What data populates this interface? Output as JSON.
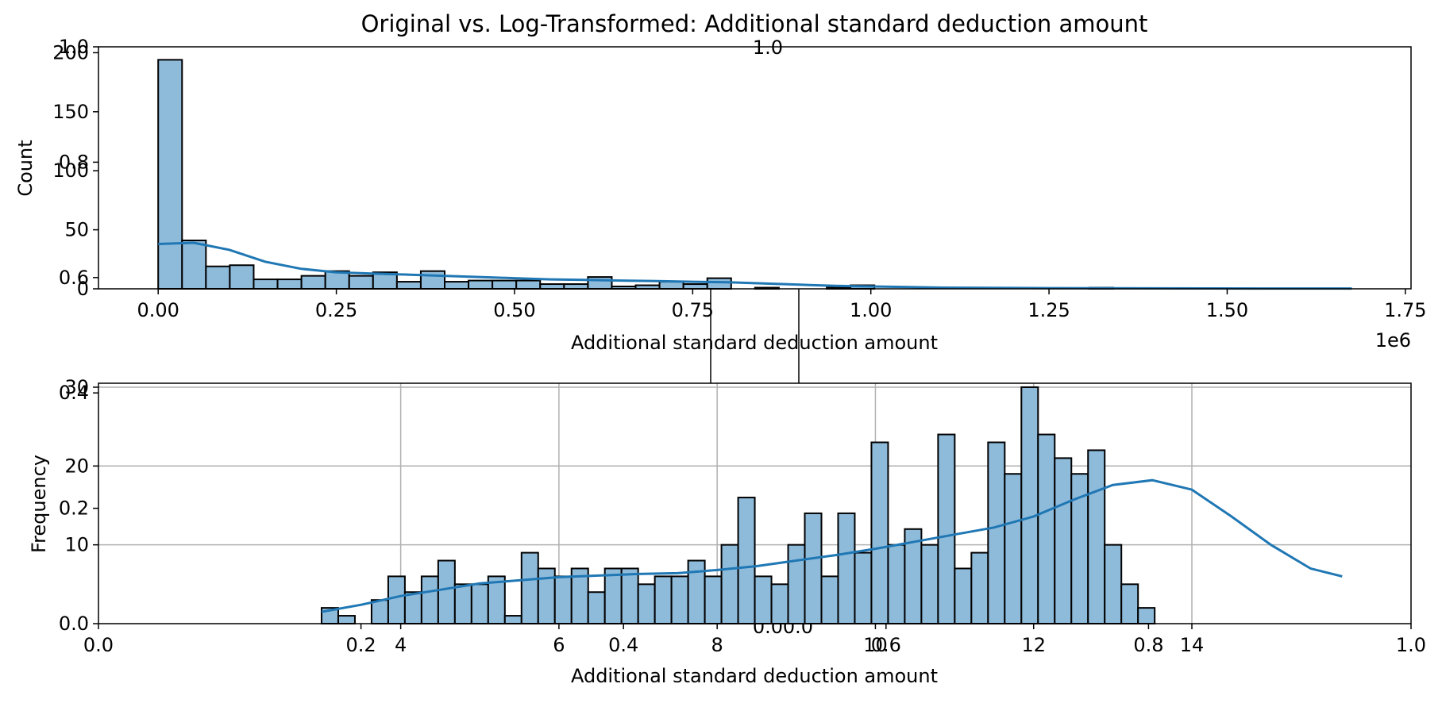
{
  "chart_data": [
    {
      "type": "bar",
      "title": "Original vs. Log-Transformed: Additional standard deduction amount",
      "xlabel": "Additional standard deduction amount",
      "ylabel": "Count",
      "x_offset_label": "1e6",
      "xlim": [
        -0.0838,
        1.758
      ],
      "ylim": [
        0,
        205
      ],
      "grid": false,
      "x_ticks": [
        {
          "v": 0.0,
          "label": "0.00"
        },
        {
          "v": 0.25,
          "label": "0.25"
        },
        {
          "v": 0.5,
          "label": "0.50"
        },
        {
          "v": 0.75,
          "label": "0.75"
        },
        {
          "v": 1.0,
          "label": "1.00"
        },
        {
          "v": 1.25,
          "label": "1.25"
        },
        {
          "v": 1.5,
          "label": "1.50"
        },
        {
          "v": 1.75,
          "label": "1.75"
        }
      ],
      "y_ticks": [
        {
          "v": 0,
          "label": "0"
        },
        {
          "v": 50,
          "label": "50"
        },
        {
          "v": 100,
          "label": "100"
        },
        {
          "v": 150,
          "label": "150"
        },
        {
          "v": 200,
          "label": "200"
        }
      ],
      "bin_start": 0.0,
      "bin_width": 0.0335,
      "values": [
        194,
        41,
        19,
        20,
        8,
        8,
        11,
        15,
        11,
        14,
        6,
        15,
        6,
        7,
        7,
        7,
        4,
        4,
        10,
        2,
        3,
        6,
        4,
        9,
        0,
        1,
        0,
        0,
        1,
        3,
        0,
        0,
        0,
        0,
        0,
        0,
        0,
        0,
        0,
        1,
        0,
        0,
        0,
        0,
        0,
        0,
        0,
        0,
        0,
        0
      ],
      "kde": [
        [
          0.0,
          38
        ],
        [
          0.05,
          39
        ],
        [
          0.1,
          33
        ],
        [
          0.15,
          23
        ],
        [
          0.2,
          17
        ],
        [
          0.25,
          14
        ],
        [
          0.3,
          13
        ],
        [
          0.35,
          12
        ],
        [
          0.4,
          11
        ],
        [
          0.45,
          10
        ],
        [
          0.5,
          9
        ],
        [
          0.55,
          8
        ],
        [
          0.6,
          7.5
        ],
        [
          0.65,
          7
        ],
        [
          0.7,
          6.5
        ],
        [
          0.75,
          6
        ],
        [
          0.8,
          5.5
        ],
        [
          0.85,
          4.5
        ],
        [
          0.9,
          3.5
        ],
        [
          0.95,
          2.5
        ],
        [
          1.0,
          2
        ],
        [
          1.1,
          1
        ],
        [
          1.25,
          0.6
        ],
        [
          1.4,
          0.4
        ],
        [
          1.55,
          0.3
        ],
        [
          1.675,
          0.3
        ]
      ]
    },
    {
      "type": "bar",
      "title": "",
      "xlabel": "Additional standard deduction amount",
      "ylabel": "Frequency",
      "xlim": [
        0.18,
        16.77
      ],
      "ylim": [
        0,
        30.5
      ],
      "grid": true,
      "x_ticks": [
        {
          "v": 4,
          "label": "4"
        },
        {
          "v": 6,
          "label": "6"
        },
        {
          "v": 8,
          "label": "8"
        },
        {
          "v": 10,
          "label": "10"
        },
        {
          "v": 12,
          "label": "12"
        },
        {
          "v": 14,
          "label": "14"
        }
      ],
      "y_ticks": [
        {
          "v": 10,
          "label": "10"
        },
        {
          "v": 20,
          "label": "20"
        },
        {
          "v": 30,
          "label": "30"
        }
      ],
      "bin_start": 3.0,
      "bin_width": 0.2106,
      "values": [
        2,
        1,
        0,
        3,
        6,
        4,
        6,
        8,
        5,
        5,
        6,
        1,
        9,
        7,
        6,
        7,
        4,
        7,
        7,
        5,
        6,
        6,
        8,
        6,
        10,
        16,
        6,
        5,
        10,
        14,
        6,
        14,
        9,
        23,
        10,
        12,
        10,
        24,
        7,
        9,
        23,
        19,
        30,
        24,
        21,
        19,
        22,
        10,
        5,
        2,
        0
      ],
      "kde": [
        [
          3.0,
          1.5
        ],
        [
          3.5,
          2.4
        ],
        [
          4.0,
          3.5
        ],
        [
          4.5,
          4.3
        ],
        [
          5.0,
          5.1
        ],
        [
          5.5,
          5.5
        ],
        [
          6.0,
          5.9
        ],
        [
          6.5,
          6.1
        ],
        [
          7.0,
          6.3
        ],
        [
          7.5,
          6.4
        ],
        [
          8.0,
          6.8
        ],
        [
          8.5,
          7.3
        ],
        [
          9.0,
          8.0
        ],
        [
          9.5,
          8.7
        ],
        [
          10.0,
          9.5
        ],
        [
          10.5,
          10.4
        ],
        [
          11.0,
          11.3
        ],
        [
          11.5,
          12.2
        ],
        [
          12.0,
          13.6
        ],
        [
          12.5,
          15.7
        ],
        [
          13.0,
          17.6
        ],
        [
          13.5,
          18.2
        ],
        [
          14.0,
          17.0
        ],
        [
          14.5,
          13.6
        ],
        [
          15.0,
          10.0
        ],
        [
          15.5,
          7.0
        ],
        [
          15.9,
          6.0
        ]
      ]
    }
  ],
  "background_axes": {
    "note_ticks": true,
    "x_labels": [
      "0.0",
      "0.2",
      "0.4",
      "0.6",
      "0.8",
      "1.0"
    ],
    "y_labels": [
      "0.0",
      "0.2",
      "0.4",
      "0.6",
      "0.8",
      "1.0"
    ],
    "extra_labels": [
      "1.0",
      "0.0",
      "0.0"
    ]
  },
  "colors": {
    "bar_fill": "#8fbbdb",
    "bar_edge": "#000000",
    "kde_line": "#1f77b4",
    "grid": "#b0b0b0"
  }
}
